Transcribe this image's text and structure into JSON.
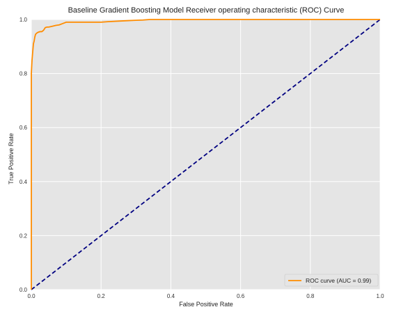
{
  "chart_data": {
    "type": "line",
    "title": "Baseline Gradient Boosting Model Receiver operating characteristic (ROC) Curve",
    "xlabel": "False Positive Rate",
    "ylabel": "True Positive Rate",
    "xlim": [
      0.0,
      1.0
    ],
    "ylim": [
      0.0,
      1.0
    ],
    "xticks": [
      "0.0",
      "0.2",
      "0.4",
      "0.6",
      "0.8",
      "1.0"
    ],
    "yticks": [
      "0.0",
      "0.2",
      "0.4",
      "0.6",
      "0.8",
      "1.0"
    ],
    "grid": true,
    "legend_position": "bottom-right",
    "colors": {
      "background": "#e5e5e5",
      "roc": "#ff8c00",
      "diagonal": "#000080"
    },
    "series": [
      {
        "name": "ROC curve (AUC = 0.99)",
        "style": "solid",
        "x": [
          0.0,
          0.0,
          0.002,
          0.004,
          0.006,
          0.008,
          0.01,
          0.012,
          0.016,
          0.02,
          0.025,
          0.03,
          0.035,
          0.04,
          0.045,
          0.05,
          0.06,
          0.07,
          0.08,
          0.09,
          0.1,
          0.12,
          0.15,
          0.2,
          0.22,
          0.25,
          0.28,
          0.3,
          0.32,
          0.34,
          0.4,
          0.5,
          1.0
        ],
        "y": [
          0.0,
          0.8,
          0.85,
          0.88,
          0.91,
          0.92,
          0.935,
          0.945,
          0.95,
          0.953,
          0.955,
          0.955,
          0.96,
          0.97,
          0.972,
          0.972,
          0.975,
          0.978,
          0.98,
          0.985,
          0.99,
          0.99,
          0.99,
          0.99,
          0.992,
          0.994,
          0.996,
          0.997,
          0.998,
          1.0,
          1.0,
          1.0,
          1.0
        ]
      },
      {
        "name": "",
        "style": "dashed",
        "x": [
          0.0,
          1.0
        ],
        "y": [
          0.0,
          1.0
        ]
      }
    ]
  }
}
